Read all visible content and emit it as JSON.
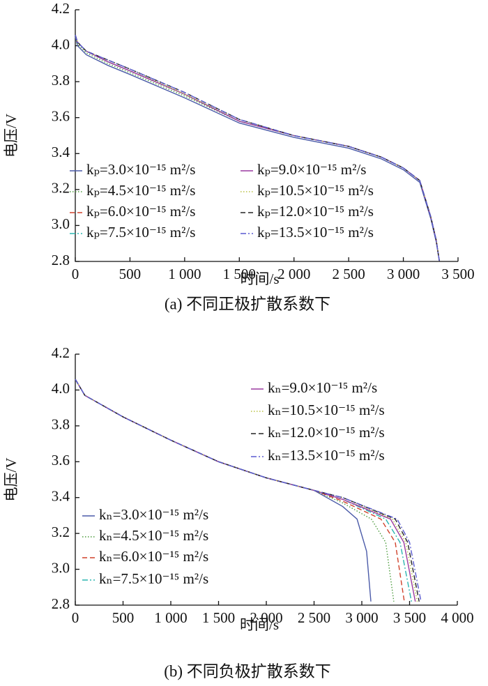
{
  "chart_data": [
    {
      "type": "line",
      "caption": "(a)  不同正极扩散系数下",
      "xlabel": "时间/s",
      "ylabel": "电压/V",
      "xlim": [
        0,
        3500
      ],
      "ylim": [
        2.8,
        4.2
      ],
      "xticks": [
        0,
        500,
        {
          "value": 1000,
          "label": "1 000"
        },
        {
          "value": 1500,
          "label": "1 500"
        },
        {
          "value": 2000,
          "label": "2 000"
        },
        {
          "value": 2500,
          "label": "2 500"
        },
        {
          "value": 3000,
          "label": "3 000"
        },
        {
          "value": 3500,
          "label": "3 500"
        }
      ],
      "yticks": [
        2.8,
        {
          "value": 3,
          "label": "3.0"
        },
        3.2,
        3.4,
        3.6,
        3.8,
        {
          "value": 4,
          "label": "4.0"
        },
        4.2
      ],
      "x": [
        0,
        20,
        100,
        300,
        500,
        1000,
        1500,
        2000,
        2500,
        2800,
        3000,
        3150,
        3250,
        3300,
        3330
      ],
      "series": [
        {
          "name": "kₚ=3.0×10⁻¹⁵ m²/s",
          "color": "#4a5aa8",
          "linestyle": "solid",
          "values": [
            4.05,
            4.0,
            3.95,
            3.89,
            3.84,
            3.71,
            3.57,
            3.49,
            3.43,
            3.37,
            3.31,
            3.24,
            3.04,
            2.91,
            2.8
          ]
        },
        {
          "name": "kₚ=4.5×10⁻¹⁵ m²/s",
          "color": "#4a9a3a",
          "linestyle": "dotted",
          "values": [
            4.06,
            4.01,
            3.96,
            3.9,
            3.85,
            3.72,
            3.58,
            3.5,
            3.44,
            3.38,
            3.32,
            3.25,
            3.05,
            2.92,
            2.8
          ]
        },
        {
          "name": "kₚ=6.0×10⁻¹⁵ m²/s",
          "color": "#d0402a",
          "linestyle": "dashed",
          "values": [
            4.06,
            4.02,
            3.97,
            3.91,
            3.86,
            3.73,
            3.58,
            3.5,
            3.44,
            3.38,
            3.32,
            3.25,
            3.05,
            2.92,
            2.8
          ]
        },
        {
          "name": "kₚ=7.5×10⁻¹⁵ m²/s",
          "color": "#2ab5b0",
          "linestyle": "dashdot",
          "values": [
            4.06,
            4.02,
            3.97,
            3.91,
            3.86,
            3.73,
            3.58,
            3.5,
            3.44,
            3.38,
            3.32,
            3.25,
            3.05,
            2.92,
            2.8
          ]
        },
        {
          "name": "kₚ=9.0×10⁻¹⁵ m²/s",
          "color": "#9a3aa0",
          "linestyle": "solid",
          "values": [
            4.06,
            4.02,
            3.97,
            3.91,
            3.86,
            3.73,
            3.58,
            3.5,
            3.44,
            3.38,
            3.32,
            3.25,
            3.05,
            2.92,
            2.8
          ]
        },
        {
          "name": "kₚ=10.5×10⁻¹⁵ m²/s",
          "color": "#b8c040",
          "linestyle": "dotted",
          "values": [
            4.06,
            4.02,
            3.97,
            3.92,
            3.87,
            3.73,
            3.59,
            3.5,
            3.44,
            3.38,
            3.32,
            3.25,
            3.05,
            2.92,
            2.8
          ]
        },
        {
          "name": "kₚ=12.0×10⁻¹⁵ m²/s",
          "color": "#222222",
          "linestyle": "dashed",
          "values": [
            4.06,
            4.02,
            3.97,
            3.92,
            3.87,
            3.74,
            3.59,
            3.5,
            3.44,
            3.38,
            3.32,
            3.25,
            3.05,
            2.92,
            2.8
          ]
        },
        {
          "name": "kₚ=13.5×10⁻¹⁵ m²/s",
          "color": "#5a5ad0",
          "linestyle": "dashdot",
          "values": [
            4.06,
            4.02,
            3.97,
            3.92,
            3.87,
            3.74,
            3.59,
            3.5,
            3.44,
            3.38,
            3.32,
            3.25,
            3.05,
            2.92,
            2.8
          ]
        }
      ]
    },
    {
      "type": "line",
      "caption": "(b)  不同负极扩散系数下",
      "xlabel": "时间/s",
      "ylabel": "电压/V",
      "xlim": [
        0,
        4000
      ],
      "ylim": [
        2.8,
        4.2
      ],
      "xticks": [
        0,
        500,
        {
          "value": 1000,
          "label": "1 000"
        },
        {
          "value": 1500,
          "label": "1 500"
        },
        {
          "value": 2000,
          "label": "2 000"
        },
        {
          "value": 2500,
          "label": "2 500"
        },
        {
          "value": 3000,
          "label": "3 000"
        },
        {
          "value": 3500,
          "label": "3 500"
        },
        {
          "value": 4000,
          "label": "4 000"
        }
      ],
      "yticks": [
        2.8,
        {
          "value": 3,
          "label": "3.0"
        },
        3.2,
        3.4,
        3.6,
        3.8,
        {
          "value": 4,
          "label": "4.0"
        },
        4.2
      ],
      "series": [
        {
          "name": "kₙ=3.0×10⁻¹⁵ m²/s",
          "color": "#4a5aa8",
          "linestyle": "solid",
          "x": [
            0,
            100,
            500,
            1000,
            1500,
            2000,
            2500,
            2800,
            2950,
            3050,
            3095
          ],
          "values": [
            4.06,
            3.97,
            3.85,
            3.72,
            3.6,
            3.51,
            3.44,
            3.35,
            3.28,
            3.1,
            2.82
          ]
        },
        {
          "name": "kₙ=4.5×10⁻¹⁵ m²/s",
          "color": "#4a9a3a",
          "linestyle": "dotted",
          "x": [
            0,
            100,
            500,
            1000,
            1500,
            2000,
            2500,
            2800,
            3100,
            3250,
            3335
          ],
          "values": [
            4.06,
            3.97,
            3.85,
            3.72,
            3.6,
            3.51,
            3.44,
            3.37,
            3.28,
            3.15,
            2.82
          ]
        },
        {
          "name": "kₙ=6.0×10⁻¹⁵ m²/s",
          "color": "#d0402a",
          "linestyle": "dashed",
          "x": [
            0,
            100,
            500,
            1000,
            1500,
            2000,
            2500,
            2800,
            3200,
            3350,
            3445
          ],
          "values": [
            4.06,
            3.97,
            3.85,
            3.72,
            3.6,
            3.51,
            3.44,
            3.38,
            3.28,
            3.15,
            2.82
          ]
        },
        {
          "name": "kₙ=7.5×10⁻¹⁵ m²/s",
          "color": "#2ab5b0",
          "linestyle": "dashdot",
          "x": [
            0,
            100,
            500,
            1000,
            1500,
            2000,
            2500,
            2800,
            3250,
            3400,
            3520
          ],
          "values": [
            4.06,
            3.97,
            3.85,
            3.72,
            3.6,
            3.51,
            3.44,
            3.39,
            3.28,
            3.15,
            2.82
          ]
        },
        {
          "name": "kₙ=9.0×10⁻¹⁵ m²/s",
          "color": "#9a3aa0",
          "linestyle": "solid",
          "x": [
            0,
            100,
            500,
            1000,
            1500,
            2000,
            2500,
            2800,
            3300,
            3440,
            3560
          ],
          "values": [
            4.06,
            3.97,
            3.85,
            3.72,
            3.6,
            3.51,
            3.44,
            3.39,
            3.28,
            3.15,
            2.82
          ]
        },
        {
          "name": "kₙ=10.5×10⁻¹⁵ m²/s",
          "color": "#b8c040",
          "linestyle": "dotted",
          "x": [
            0,
            100,
            500,
            1000,
            1500,
            2000,
            2500,
            2800,
            3320,
            3460,
            3580
          ],
          "values": [
            4.06,
            3.97,
            3.85,
            3.72,
            3.6,
            3.51,
            3.44,
            3.4,
            3.28,
            3.15,
            2.82
          ]
        },
        {
          "name": "kₙ=12.0×10⁻¹⁵ m²/s",
          "color": "#222222",
          "linestyle": "dashed",
          "x": [
            0,
            100,
            500,
            1000,
            1500,
            2000,
            2500,
            2800,
            3350,
            3480,
            3600
          ],
          "values": [
            4.06,
            3.97,
            3.85,
            3.72,
            3.6,
            3.51,
            3.44,
            3.4,
            3.28,
            3.15,
            2.82
          ]
        },
        {
          "name": "kₙ=13.5×10⁻¹⁵ m²/s",
          "color": "#5a5ad0",
          "linestyle": "dashdot",
          "x": [
            0,
            100,
            500,
            1000,
            1500,
            2000,
            2500,
            2800,
            3370,
            3500,
            3620
          ],
          "values": [
            4.06,
            3.97,
            3.85,
            3.72,
            3.6,
            3.51,
            3.44,
            3.4,
            3.28,
            3.15,
            2.82
          ]
        }
      ]
    }
  ]
}
